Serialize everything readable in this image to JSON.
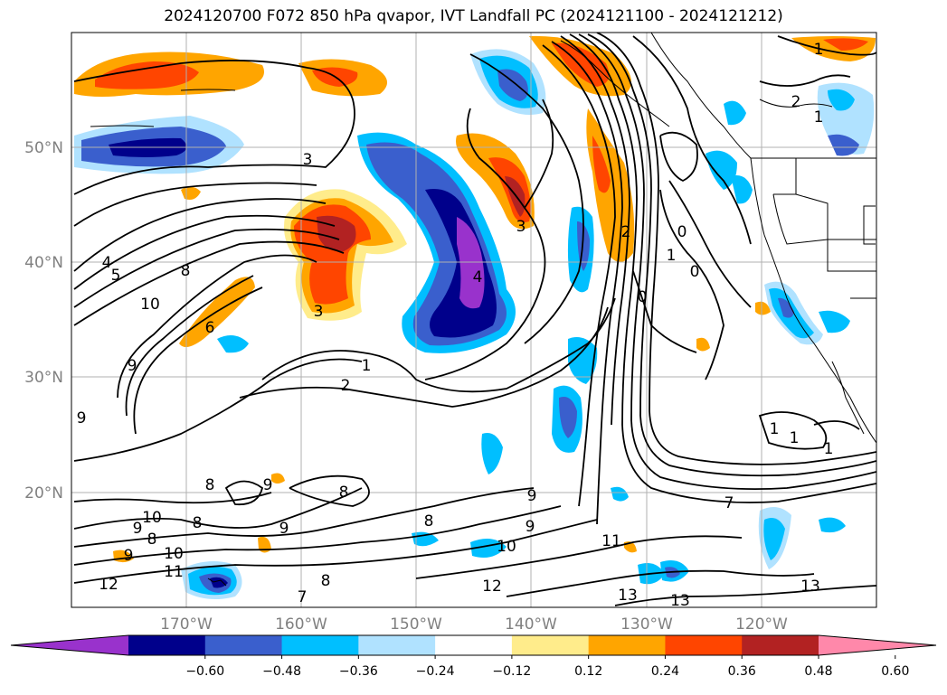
{
  "title": "2024120700 F072 850 hPa qvapor, IVT Landfall PC (2024121100 - 2024121212)",
  "map": {
    "lat_labels": [
      "50°N",
      "40°N",
      "30°N",
      "20°N"
    ],
    "lon_labels": [
      "170°W",
      "160°W",
      "150°W",
      "140°W",
      "130°W",
      "120°W"
    ],
    "grid": true,
    "label_color": "#808080"
  },
  "colorbar": {
    "ticks": [
      "−0.60",
      "−0.48",
      "−0.36",
      "−0.24",
      "−0.12",
      "0.12",
      "0.24",
      "0.36",
      "0.48",
      "0.60"
    ],
    "colors": [
      "#9932cc",
      "#00008b",
      "#3a5fcd",
      "#00bfff",
      "#b0e2ff",
      "#ffffff",
      "#ffec8b",
      "#ffa500",
      "#ff4500",
      "#b22222",
      "#ff88aa"
    ],
    "extend": "both"
  },
  "contour_labels": [
    {
      "id": "c1",
      "text": "1"
    },
    {
      "id": "c2",
      "text": "2"
    },
    {
      "id": "c3",
      "text": "1"
    },
    {
      "id": "c4",
      "text": "3"
    },
    {
      "id": "c5",
      "text": "4"
    },
    {
      "id": "c6",
      "text": "5"
    },
    {
      "id": "c7",
      "text": "8"
    },
    {
      "id": "c8",
      "text": "10"
    },
    {
      "id": "c9",
      "text": "3"
    },
    {
      "id": "c10",
      "text": "6"
    },
    {
      "id": "c11",
      "text": "9"
    },
    {
      "id": "c12",
      "text": "1"
    },
    {
      "id": "c13",
      "text": "2"
    },
    {
      "id": "c14",
      "text": "4"
    },
    {
      "id": "c15",
      "text": "3"
    },
    {
      "id": "c16",
      "text": "2"
    },
    {
      "id": "c17",
      "text": "0"
    },
    {
      "id": "c18",
      "text": "1"
    },
    {
      "id": "c19",
      "text": "0"
    },
    {
      "id": "c20",
      "text": "0"
    },
    {
      "id": "c21",
      "text": "9"
    },
    {
      "id": "c22",
      "text": "8"
    },
    {
      "id": "c23",
      "text": "9"
    },
    {
      "id": "c24",
      "text": "8"
    },
    {
      "id": "c25",
      "text": "10"
    },
    {
      "id": "c26",
      "text": "8"
    },
    {
      "id": "c27",
      "text": "9"
    },
    {
      "id": "c28",
      "text": "8"
    },
    {
      "id": "c29",
      "text": "9"
    },
    {
      "id": "c30",
      "text": "9"
    },
    {
      "id": "c31",
      "text": "10"
    },
    {
      "id": "c32",
      "text": "11"
    },
    {
      "id": "c33",
      "text": "12"
    },
    {
      "id": "c34",
      "text": "8"
    },
    {
      "id": "c35",
      "text": "7"
    },
    {
      "id": "c36",
      "text": "9"
    },
    {
      "id": "c37",
      "text": "8"
    },
    {
      "id": "c38",
      "text": "10"
    },
    {
      "id": "c39",
      "text": "11"
    },
    {
      "id": "c40",
      "text": "12"
    },
    {
      "id": "c41",
      "text": "13"
    },
    {
      "id": "c42",
      "text": "13"
    },
    {
      "id": "c43",
      "text": "13"
    },
    {
      "id": "c44",
      "text": "7"
    },
    {
      "id": "c45",
      "text": "1"
    },
    {
      "id": "c46",
      "text": "1"
    },
    {
      "id": "c47",
      "text": "1"
    },
    {
      "id": "c48",
      "text": "9"
    }
  ]
}
